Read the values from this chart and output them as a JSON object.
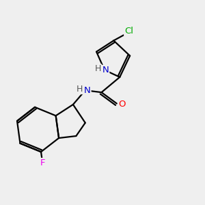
{
  "background_color": "#efefef",
  "bond_color": "#000000",
  "atom_colors": {
    "N": "#0000cc",
    "O": "#ff0000",
    "F": "#ee00ee",
    "Cl": "#00aa00",
    "H": "#555555",
    "C": "#000000"
  },
  "figsize": [
    3.0,
    3.0
  ],
  "dpi": 100,
  "lw": 1.6,
  "fs": 9.5
}
